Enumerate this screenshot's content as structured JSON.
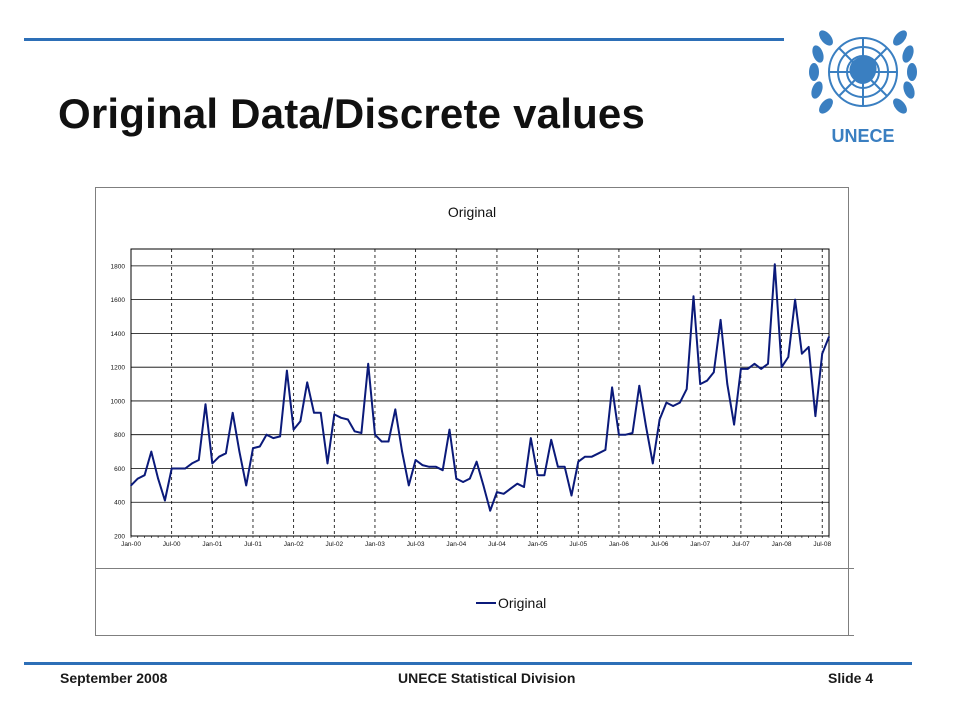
{
  "slide": {
    "title": "Original Data/Discrete values",
    "footer_left": "September 2008",
    "footer_center": "UNECE Statistical Division",
    "footer_right": "Slide 4",
    "logo_text": "UNECE",
    "accent_color": "#2d6fb7"
  },
  "chart_data": {
    "type": "line",
    "title": "Original",
    "xlabel": "",
    "ylabel": "",
    "ylim": [
      200,
      1900
    ],
    "yticks": [
      200,
      400,
      600,
      800,
      1000,
      1200,
      1400,
      1600,
      1800
    ],
    "xtick_labels": [
      "Jan-00",
      "Jul-00",
      "Jan-01",
      "Jul-01",
      "Jan-02",
      "Jul-02",
      "Jan-03",
      "Jul-03",
      "Jan-04",
      "Jul-04",
      "Jan-05",
      "Jul-05",
      "Jan-06",
      "Jul-06",
      "Jan-07",
      "Jul-07",
      "Jan-08",
      "Jul-08"
    ],
    "x_start": "Jan-00",
    "frequency": "monthly",
    "grid": true,
    "legend_position": "bottom",
    "line_color": "#0b1a7a",
    "series": [
      {
        "name": "Original",
        "values": [
          500,
          540,
          560,
          700,
          540,
          410,
          600,
          600,
          600,
          630,
          650,
          980,
          630,
          670,
          690,
          930,
          700,
          500,
          720,
          730,
          800,
          780,
          790,
          1180,
          830,
          880,
          1110,
          930,
          930,
          630,
          920,
          900,
          890,
          820,
          810,
          1220,
          800,
          760,
          760,
          950,
          700,
          500,
          650,
          620,
          610,
          610,
          590,
          830,
          540,
          520,
          540,
          640,
          500,
          350,
          460,
          450,
          480,
          510,
          490,
          780,
          560,
          560,
          770,
          610,
          610,
          440,
          640,
          670,
          670,
          690,
          710,
          1080,
          800,
          800,
          810,
          1090,
          850,
          630,
          890,
          990,
          970,
          990,
          1070,
          1620,
          1100,
          1120,
          1170,
          1480,
          1100,
          860,
          1190,
          1190,
          1220,
          1190,
          1220,
          1810,
          1200,
          1260,
          1600,
          1280,
          1320,
          910,
          1280,
          1380
        ]
      }
    ]
  }
}
